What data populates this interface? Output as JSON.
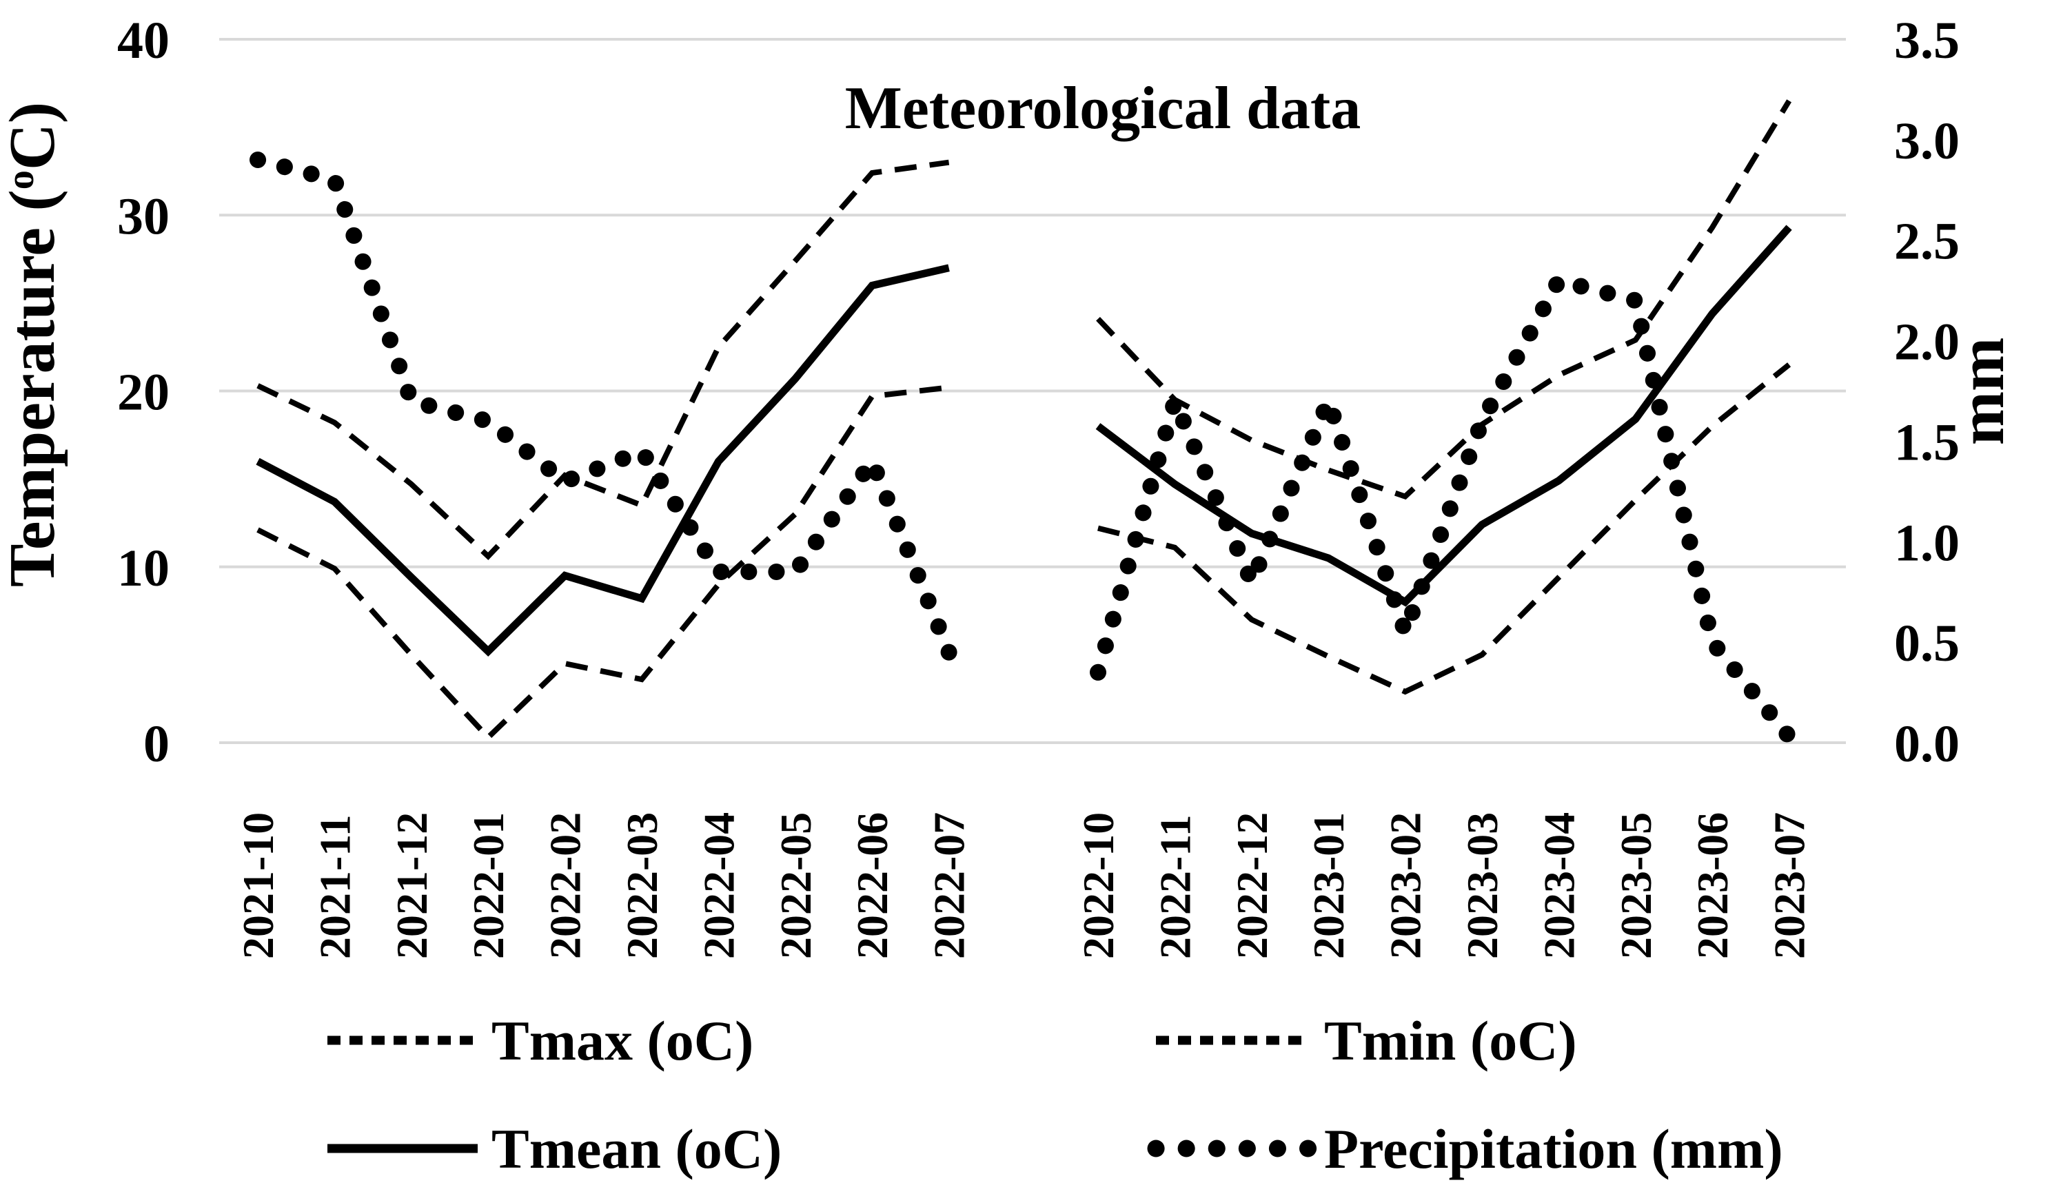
{
  "chart_data": {
    "type": "line",
    "title": "Meteorological data",
    "left_axis": {
      "label": {
        "prefix": "Temperature (",
        "sup": "o",
        "suffix": "C)"
      },
      "ticks": [
        "0",
        "10",
        "20",
        "30",
        "40"
      ],
      "tick_values": [
        0,
        10,
        20,
        30,
        40
      ],
      "range": [
        0,
        40
      ],
      "grid": true
    },
    "right_axis": {
      "label": "mm",
      "ticks": [
        "0.0",
        "0.5",
        "1.0",
        "1.5",
        "2.0",
        "2.5",
        "3.0",
        "3.5"
      ],
      "tick_values": [
        0.0,
        0.5,
        1.0,
        1.5,
        2.0,
        2.5,
        3.0,
        3.5
      ],
      "range": [
        0,
        3.5
      ]
    },
    "categories": [
      "2021-10",
      "2021-11",
      "2021-12",
      "2022-01",
      "2022-02",
      "2022-03",
      "2022-04",
      "2022-05",
      "2022-06",
      "2022-07",
      "2022-10",
      "2022-11",
      "2022-12",
      "2023-01",
      "2023-02",
      "2023-03",
      "2023-04",
      "2023-05",
      "2023-06",
      "2023-07"
    ],
    "season_break_index": 10,
    "series": [
      {
        "name": "Tmax (oC)",
        "axis": "left",
        "style": "dashed",
        "values": [
          20.3,
          18.2,
          14.7,
          10.6,
          15.2,
          13.5,
          22.5,
          27.4,
          32.4,
          33.0,
          24.1,
          19.5,
          17.2,
          15.5,
          14.0,
          18.1,
          20.9,
          22.9,
          29.3,
          36.5
        ]
      },
      {
        "name": "Tmin (oC)",
        "axis": "left",
        "style": "dashed",
        "values": [
          12.1,
          9.9,
          5.0,
          0.3,
          4.5,
          3.6,
          9.0,
          13.0,
          19.7,
          20.2,
          12.2,
          11.1,
          7.0,
          4.9,
          2.9,
          5.0,
          9.4,
          13.8,
          18.0,
          21.5
        ]
      },
      {
        "name": "Tmean (oC)",
        "axis": "left",
        "style": "solid",
        "values": [
          16.0,
          13.7,
          9.4,
          5.2,
          9.5,
          8.2,
          16.0,
          20.7,
          26.0,
          27.0,
          18.0,
          14.7,
          11.9,
          10.5,
          8.0,
          12.4,
          14.9,
          18.4,
          24.4,
          29.3
        ]
      },
      {
        "name": "Precipitation (mm)",
        "axis": "right",
        "style": "dotted",
        "values": [
          2.9,
          2.8,
          1.7,
          1.6,
          1.3,
          1.45,
          0.85,
          0.85,
          1.4,
          0.45,
          0.35,
          1.7,
          0.8,
          1.7,
          0.55,
          1.6,
          2.3,
          2.2,
          0.5,
          0.03
        ]
      }
    ],
    "legend": [
      {
        "label": "Tmax (oC)",
        "style": "dashed",
        "row": 0,
        "col": 0
      },
      {
        "label": "Tmin (oC)",
        "style": "dashed",
        "row": 0,
        "col": 1
      },
      {
        "label": "Tmean (oC)",
        "style": "solid",
        "row": 1,
        "col": 0
      },
      {
        "label": "Precipitation (mm)",
        "style": "dotted",
        "row": 1,
        "col": 1
      }
    ],
    "colors": {
      "line": "#000000",
      "gridline": "#d9d9d9",
      "background": "#ffffff",
      "text": "#000000"
    }
  }
}
